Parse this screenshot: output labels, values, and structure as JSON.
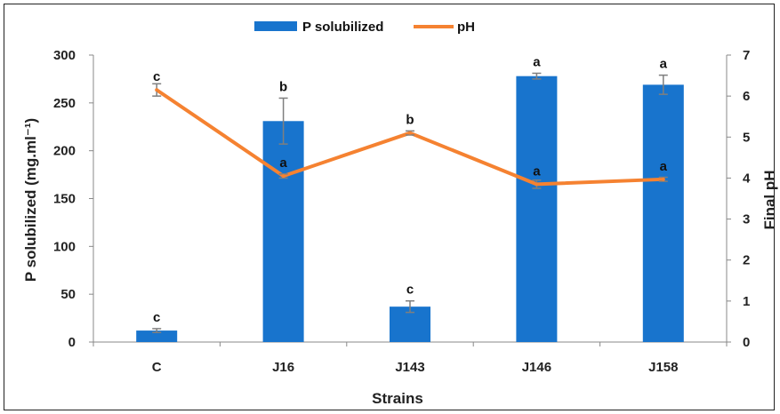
{
  "chart_data": {
    "type": "bar",
    "categories": [
      "C",
      "J16",
      "J143",
      "J146",
      "J158"
    ],
    "series": [
      {
        "name": "P solubilized",
        "type": "bar",
        "axis": "left",
        "color": "#1874CD",
        "values": [
          12,
          231,
          37,
          278,
          269
        ],
        "errors": [
          2,
          24,
          6,
          3,
          10
        ],
        "letters": [
          "c",
          "b",
          "c",
          "a",
          "a"
        ]
      },
      {
        "name": "pH",
        "type": "line",
        "axis": "right",
        "color": "#F58231",
        "values": [
          6.15,
          4.05,
          5.1,
          3.85,
          3.97
        ],
        "errors": [
          0.15,
          0.05,
          0.05,
          0.1,
          0.05
        ],
        "letters": [
          "c",
          "a",
          "b",
          "a",
          "a"
        ]
      }
    ],
    "xlabel": "Strains",
    "ylabel": "P solubilized (mg.ml⁻¹)",
    "y2label": "Final pH",
    "ylim": [
      0,
      300
    ],
    "yticks": [
      "0",
      "50",
      "100",
      "150",
      "200",
      "250",
      "300"
    ],
    "y2lim": [
      0,
      7
    ],
    "y2ticks": [
      "0",
      "1",
      "2",
      "3",
      "4",
      "5",
      "6",
      "7"
    ],
    "grid": false,
    "legend": "top"
  }
}
